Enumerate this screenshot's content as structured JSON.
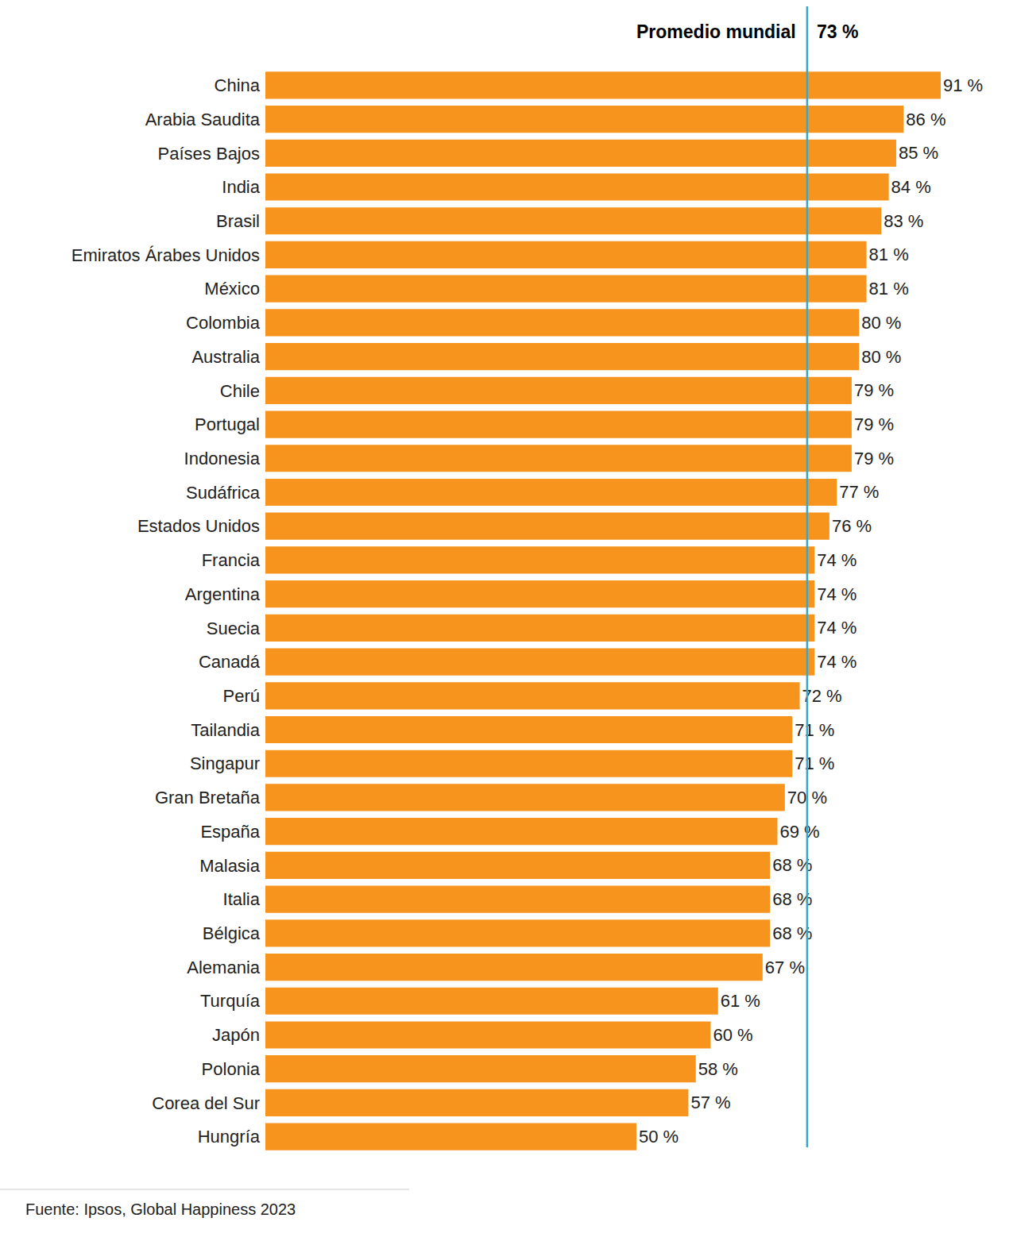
{
  "chart_data": {
    "type": "bar",
    "orientation": "horizontal",
    "categories": [
      "China",
      "Arabia Saudita",
      "Países Bajos",
      "India",
      "Brasil",
      "Emiratos Árabes Unidos",
      "México",
      "Colombia",
      "Australia",
      "Chile",
      "Portugal",
      "Indonesia",
      "Sudáfrica",
      "Estados Unidos",
      "Francia",
      "Argentina",
      "Suecia",
      "Canadá",
      "Perú",
      "Tailandia",
      "Singapur",
      "Gran Bretaña",
      "España",
      "Malasia",
      "Italia",
      "Bélgica",
      "Alemania",
      "Turquía",
      "Japón",
      "Polonia",
      "Corea del Sur",
      "Hungría"
    ],
    "values": [
      91,
      86,
      85,
      84,
      83,
      81,
      81,
      80,
      80,
      79,
      79,
      79,
      77,
      76,
      74,
      74,
      74,
      74,
      72,
      71,
      71,
      70,
      69,
      68,
      68,
      68,
      67,
      61,
      60,
      58,
      57,
      50
    ],
    "value_labels": [
      "91 %",
      "86 %",
      "85 %",
      "84 %",
      "83 %",
      "81 %",
      "81 %",
      "80 %",
      "80 %",
      "79 %",
      "79 %",
      "79 %",
      "77 %",
      "76 %",
      "74 %",
      "74 %",
      "74 %",
      "74 %",
      "72 %",
      "71 %",
      "71 %",
      "70 %",
      "69 %",
      "68 %",
      "68 %",
      "68 %",
      "67 %",
      "61 %",
      "60 %",
      "58 %",
      "57 %",
      "50 %"
    ],
    "color": "#f7941d",
    "xlim": [
      0,
      91
    ],
    "grid": false,
    "data_labels": true,
    "tick_labels": "y",
    "reference_line": {
      "label": "Promedio mundial",
      "value": 73,
      "value_label": "73 %",
      "color": "#3aa6c9"
    },
    "source": "Fuente: Ipsos, Global Happiness 2023"
  }
}
